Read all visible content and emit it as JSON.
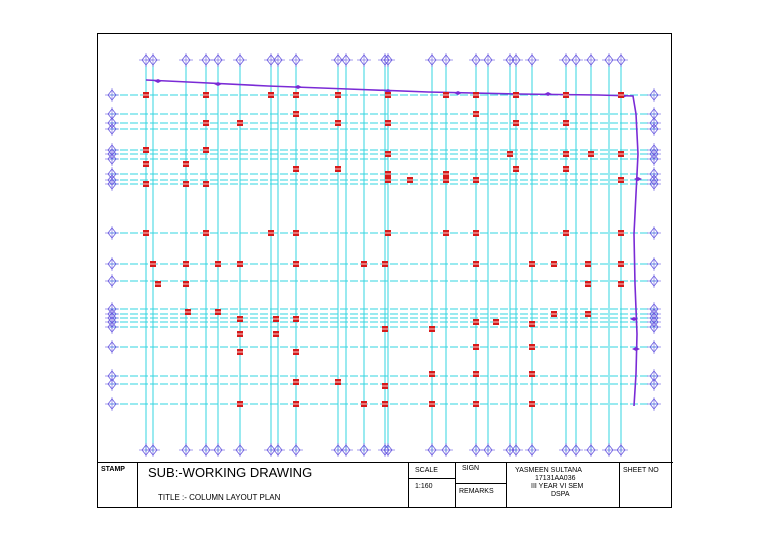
{
  "title_block": {
    "stamp_label": "STAMP",
    "subject": "SUB:-WORKING DRAWING",
    "title": "TITLE :-  COLUMN LAYOUT PLAN",
    "scale_label": "SCALE",
    "scale_value": "1:160",
    "sign_label": "SIGN",
    "remarks_label": "REMARKS",
    "student_name": "YASMEEN SULTANA",
    "student_id": "17131AA036",
    "year_sem": "III YEAR VI SEM",
    "institution": "DSPA",
    "sheet_no_label": "SHEET NO"
  },
  "colors": {
    "grid_line": "#33d6e0",
    "column": "#d61a1a",
    "grid_marker": "#6a5ae0",
    "boundary": "#7a2bd6",
    "border": "#000000"
  },
  "icons": {
    "grid_marker": "diamond-cross-icon",
    "column": "column-rect-icon"
  }
}
